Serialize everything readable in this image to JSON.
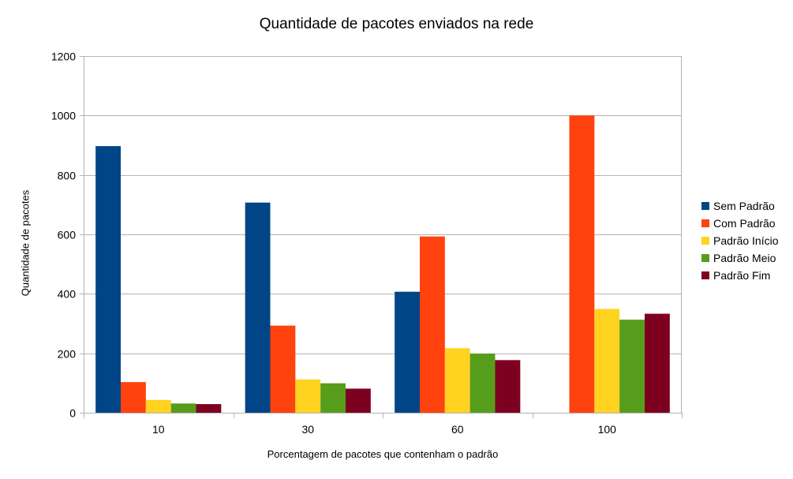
{
  "chart_data": {
    "type": "bar",
    "title": "Quantidade de pacotes enviados na rede",
    "xlabel": "Porcentagem de pacotes que contenham o padrão",
    "ylabel": "Quantidade de pacotes",
    "categories": [
      "10",
      "30",
      "60",
      "100"
    ],
    "ylim": [
      0,
      1200
    ],
    "yticks": [
      "0",
      "200",
      "400",
      "600",
      "800",
      "1000",
      "1200"
    ],
    "grid": true,
    "legend_position": "right",
    "series": [
      {
        "name": "Sem Padrão",
        "color": "#004586",
        "values": [
          897,
          707,
          407,
          0
        ]
      },
      {
        "name": "Com Padrão",
        "color": "#ff420e",
        "values": [
          103,
          293,
          593,
          1000
        ]
      },
      {
        "name": "Padrão Início",
        "color": "#ffd320",
        "values": [
          43,
          112,
          217,
          349
        ]
      },
      {
        "name": "Padrão Meio",
        "color": "#579d1c",
        "values": [
          31,
          99,
          199,
          313
        ]
      },
      {
        "name": "Padrão Fim",
        "color": "#7e0021",
        "values": [
          29,
          81,
          177,
          333
        ]
      }
    ]
  }
}
